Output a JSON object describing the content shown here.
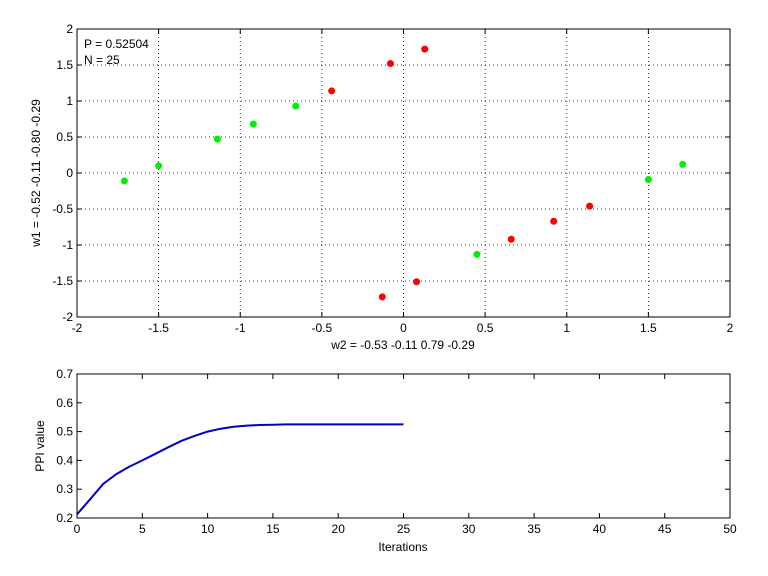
{
  "chart_data": [
    {
      "type": "scatter",
      "xlim": [
        -2,
        2
      ],
      "ylim": [
        -2,
        2
      ],
      "xticks": [
        -2,
        -1.5,
        -1,
        -0.5,
        0,
        0.5,
        1,
        1.5,
        2
      ],
      "yticks": [
        -2,
        -1.5,
        -1,
        -0.5,
        0,
        0.5,
        1,
        1.5,
        2
      ],
      "xtick_labels": [
        "-2",
        "-1.5",
        "-1",
        "-0.5",
        "0",
        "0.5",
        "1",
        "1.5",
        "2"
      ],
      "ytick_labels": [
        "-2",
        "-1.5",
        "-1",
        "-0.5",
        "0",
        "0.5",
        "1",
        "1.5",
        "2"
      ],
      "xlabel": "w2 = -0.53  -0.11  0.79  -0.29",
      "ylabel": "w1 = -0.52  -0.11  -0.80  -0.29",
      "annotations": [
        "P = 0.52504",
        "N = 25"
      ],
      "grid": true,
      "series": [
        {
          "color": "#00ee00",
          "points": [
            [
              -1.71,
              -0.11
            ],
            [
              -1.5,
              0.1
            ],
            [
              -1.14,
              0.47
            ],
            [
              -0.92,
              0.68
            ],
            [
              -0.66,
              0.93
            ],
            [
              0.45,
              -1.13
            ],
            [
              1.5,
              -0.09
            ],
            [
              1.71,
              0.12
            ]
          ]
        },
        {
          "color": "#ff0000",
          "points": [
            [
              -0.44,
              1.14
            ],
            [
              -0.08,
              1.52
            ],
            [
              0.13,
              1.72
            ],
            [
              -0.13,
              -1.72
            ],
            [
              0.08,
              -1.51
            ],
            [
              0.66,
              -0.92
            ],
            [
              0.92,
              -0.67
            ],
            [
              1.14,
              -0.46
            ]
          ]
        }
      ]
    },
    {
      "type": "line",
      "xlim": [
        0,
        50
      ],
      "ylim": [
        0.2,
        0.7
      ],
      "xticks": [
        0,
        5,
        10,
        15,
        20,
        25,
        30,
        35,
        40,
        45,
        50
      ],
      "yticks": [
        0.2,
        0.3,
        0.4,
        0.5,
        0.6,
        0.7
      ],
      "xtick_labels": [
        "0",
        "5",
        "10",
        "15",
        "20",
        "25",
        "30",
        "35",
        "40",
        "45",
        "50"
      ],
      "ytick_labels": [
        "0.2",
        "0.3",
        "0.4",
        "0.5",
        "0.6",
        "0.7"
      ],
      "xlabel": "Iterations",
      "ylabel": "PPI value",
      "grid": false,
      "series": [
        {
          "color": "#0000cc",
          "x": [
            0,
            1,
            2,
            3,
            4,
            5,
            6,
            7,
            8,
            9,
            10,
            11,
            12,
            13,
            14,
            15,
            16,
            17,
            18,
            19,
            20,
            21,
            22,
            23,
            24,
            25
          ],
          "y": [
            0.213,
            0.265,
            0.318,
            0.352,
            0.378,
            0.4,
            0.423,
            0.446,
            0.468,
            0.485,
            0.5,
            0.51,
            0.517,
            0.521,
            0.523,
            0.524,
            0.525,
            0.525,
            0.525,
            0.525,
            0.525,
            0.525,
            0.525,
            0.525,
            0.525,
            0.525
          ]
        }
      ]
    }
  ]
}
